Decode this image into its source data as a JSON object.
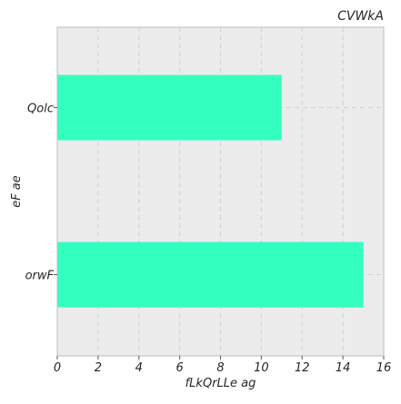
{
  "chart_data": {
    "type": "bar",
    "orientation": "horizontal",
    "title": "CVWkA",
    "xlabel": "fLkQrLLe  ag",
    "ylabel": "eF ae",
    "categories": [
      "Qolc",
      "orwF"
    ],
    "values": [
      11,
      15
    ],
    "xlim": [
      0,
      16
    ],
    "xticks": [
      0,
      2,
      4,
      6,
      8,
      10,
      12,
      14,
      16
    ],
    "grid": true,
    "colors": {
      "bar": "#33ffbe",
      "background": "#ececec",
      "grid": "#d0d0d0",
      "frame": "#bcbcbc"
    }
  }
}
